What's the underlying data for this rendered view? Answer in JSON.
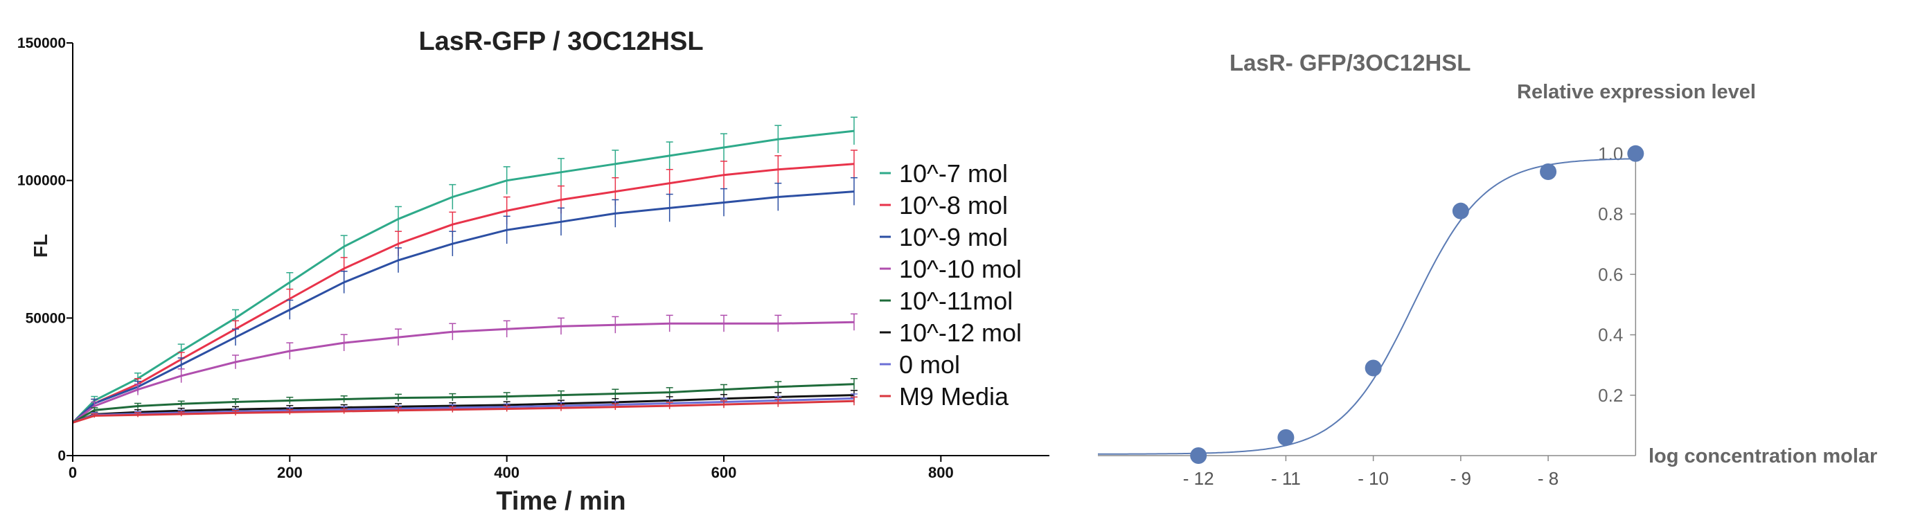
{
  "chart_data": [
    {
      "type": "line",
      "title": "LasR-GFP / 3OC12HSL",
      "xlabel": "Time / min",
      "ylabel": "FL",
      "xlim": [
        0,
        900
      ],
      "ylim": [
        0,
        150000
      ],
      "x_ticks": [
        0,
        200,
        400,
        600,
        800
      ],
      "y_ticks": [
        0,
        50000,
        100000,
        150000
      ],
      "x_tick_labels": [
        "0",
        "200",
        "400",
        "600",
        "800"
      ],
      "y_tick_labels": [
        "0",
        "50000",
        "100000",
        "150000"
      ],
      "error_bars": true,
      "legend_position": "right",
      "series": [
        {
          "name": "10^-7 mol",
          "color": "#2eaa8a",
          "x": [
            0,
            20,
            60,
            100,
            150,
            200,
            250,
            300,
            350,
            400,
            450,
            500,
            550,
            600,
            650,
            720
          ],
          "y": [
            12000,
            20000,
            28000,
            38000,
            50000,
            63000,
            76000,
            86000,
            94000,
            100000,
            103000,
            106000,
            109000,
            112000,
            115000,
            118000
          ],
          "err": [
            1000,
            1500,
            2000,
            2500,
            3000,
            3500,
            4000,
            4500,
            4500,
            5000,
            5000,
            5000,
            5000,
            5000,
            5000,
            5000
          ]
        },
        {
          "name": "10^-8 mol",
          "color": "#e8334a",
          "x": [
            0,
            20,
            60,
            100,
            150,
            200,
            250,
            300,
            350,
            400,
            450,
            500,
            550,
            600,
            650,
            720
          ],
          "y": [
            12000,
            19000,
            26000,
            35000,
            46000,
            57000,
            68000,
            77000,
            84000,
            89000,
            93000,
            96000,
            99000,
            102000,
            104000,
            106000
          ],
          "err": [
            1000,
            1500,
            2000,
            2500,
            3000,
            3500,
            4000,
            4500,
            4500,
            5000,
            5000,
            5000,
            5000,
            5000,
            5000,
            5000
          ]
        },
        {
          "name": "10^-9 mol",
          "color": "#2c4fa3",
          "x": [
            0,
            20,
            60,
            100,
            150,
            200,
            250,
            300,
            350,
            400,
            450,
            500,
            550,
            600,
            650,
            720
          ],
          "y": [
            12000,
            19000,
            25000,
            33000,
            43000,
            53000,
            63000,
            71000,
            77000,
            82000,
            85000,
            88000,
            90000,
            92000,
            94000,
            96000
          ],
          "err": [
            1000,
            1500,
            2000,
            2500,
            3000,
            3500,
            4000,
            4500,
            4500,
            5000,
            5000,
            5000,
            5000,
            5000,
            5000,
            5000
          ]
        },
        {
          "name": "10^-10 mol",
          "color": "#b04fae",
          "x": [
            0,
            20,
            60,
            100,
            150,
            200,
            250,
            300,
            350,
            400,
            450,
            500,
            550,
            600,
            650,
            720
          ],
          "y": [
            12000,
            18000,
            24000,
            29000,
            34000,
            38000,
            41000,
            43000,
            45000,
            46000,
            47000,
            47500,
            48000,
            48000,
            48000,
            48500
          ],
          "err": [
            1000,
            1500,
            2000,
            2500,
            2500,
            3000,
            3000,
            3000,
            3000,
            3000,
            3000,
            3000,
            3000,
            3000,
            3000,
            3000
          ]
        },
        {
          "name": "10^-11mol",
          "color": "#1e6b3a",
          "x": [
            0,
            20,
            60,
            100,
            150,
            200,
            250,
            300,
            350,
            400,
            450,
            500,
            550,
            600,
            650,
            720
          ],
          "y": [
            12000,
            16500,
            18000,
            18800,
            19500,
            20000,
            20500,
            21000,
            21200,
            21500,
            22000,
            22500,
            23000,
            24000,
            25000,
            26000
          ],
          "err": [
            800,
            900,
            1000,
            1000,
            1100,
            1200,
            1200,
            1300,
            1300,
            1400,
            1500,
            1600,
            1700,
            1800,
            1900,
            2000
          ]
        },
        {
          "name": "10^-12 mol",
          "color": "#111111",
          "x": [
            0,
            20,
            60,
            100,
            150,
            200,
            250,
            300,
            350,
            400,
            450,
            500,
            550,
            600,
            650,
            720
          ],
          "y": [
            12000,
            15000,
            15800,
            16300,
            16800,
            17200,
            17500,
            17800,
            18100,
            18400,
            18900,
            19400,
            20000,
            20700,
            21300,
            22000
          ],
          "err": [
            700,
            800,
            900,
            900,
            1000,
            1000,
            1000,
            1100,
            1100,
            1200,
            1200,
            1300,
            1400,
            1500,
            1600,
            1700
          ]
        },
        {
          "name": "0 mol",
          "color": "#6b6fd6",
          "x": [
            0,
            20,
            60,
            100,
            150,
            200,
            250,
            300,
            350,
            400,
            450,
            500,
            550,
            600,
            650,
            720
          ],
          "y": [
            12000,
            14800,
            15200,
            15600,
            16000,
            16400,
            16800,
            17100,
            17400,
            17700,
            18100,
            18500,
            19000,
            19500,
            20000,
            20800
          ],
          "err": [
            700,
            800,
            800,
            900,
            900,
            1000,
            1000,
            1000,
            1100,
            1100,
            1200,
            1200,
            1300,
            1400,
            1500,
            1600
          ]
        },
        {
          "name": "M9 Media",
          "color": "#d9363e",
          "x": [
            0,
            20,
            60,
            100,
            150,
            200,
            250,
            300,
            350,
            400,
            450,
            500,
            550,
            600,
            650,
            720
          ],
          "y": [
            12000,
            14500,
            14800,
            15100,
            15500,
            15800,
            16100,
            16400,
            16700,
            17000,
            17300,
            17700,
            18100,
            18600,
            19100,
            19800
          ],
          "err": [
            700,
            700,
            800,
            800,
            900,
            900,
            900,
            1000,
            1000,
            1000,
            1100,
            1100,
            1200,
            1300,
            1400,
            1500
          ]
        }
      ]
    },
    {
      "type": "scatter",
      "title": "LasR- GFP/3OC12HSL",
      "xlabel": "log concentration molar",
      "ylabel": "Relative expression level",
      "xlim": [
        -13.15,
        -7.05
      ],
      "ylim": [
        0,
        1.05
      ],
      "x_ticks": [
        -12,
        -11,
        -10,
        -9,
        -8
      ],
      "x_tick_labels": [
        "- 12",
        "- 11",
        "- 10",
        "- 9",
        "- 8"
      ],
      "y_ticks": [
        0.2,
        0.4,
        0.6,
        0.8,
        1.0
      ],
      "y_tick_labels": [
        "0.2",
        "0.4",
        "0.6",
        "0.8",
        "1.0"
      ],
      "color": "#5b7bb4",
      "fit": "sigmoid",
      "points": {
        "x": [
          -12,
          -11,
          -10,
          -9,
          -8,
          -7
        ],
        "y": [
          0.0,
          0.06,
          0.29,
          0.81,
          0.94,
          1.0
        ]
      }
    }
  ]
}
